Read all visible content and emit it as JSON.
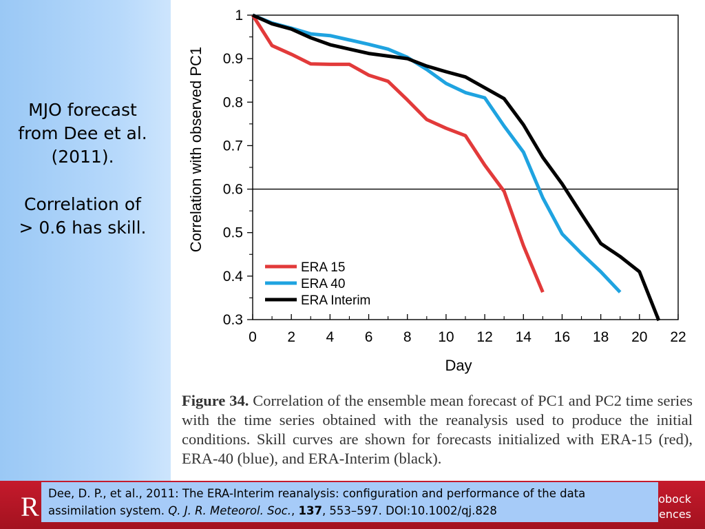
{
  "sidebar": {
    "line1": "MJO forecast",
    "line2": "from Dee et al.",
    "line3": "(2011).",
    "line4": "Correlation of",
    "line5": "> 0.6 has skill."
  },
  "chart_data": {
    "type": "line",
    "title": "",
    "xlabel": "Day",
    "ylabel": "Correlation with observed PC1",
    "xlim": [
      0,
      22
    ],
    "ylim": [
      0.3,
      1.0
    ],
    "xticks": [
      0,
      2,
      4,
      6,
      8,
      10,
      12,
      14,
      16,
      18,
      20,
      22
    ],
    "yticks": [
      0.3,
      0.4,
      0.5,
      0.6,
      0.7,
      0.8,
      0.9,
      1
    ],
    "xtick_labels": [
      "0",
      "2",
      "4",
      "6",
      "8",
      "10",
      "12",
      "14",
      "16",
      "18",
      "20",
      "22"
    ],
    "ytick_labels": [
      "0.3",
      "0.4",
      "0.5",
      "0.6",
      "0.7",
      "0.8",
      "0.9",
      "1"
    ],
    "reference_line_y": 0.6,
    "grid": false,
    "legend_position": "bottom-left",
    "series": [
      {
        "name": "ERA 15",
        "color": "#e23a3a",
        "x": [
          0,
          1,
          2,
          3,
          4,
          5,
          6,
          7,
          8,
          9,
          10,
          11,
          12,
          13,
          14,
          15
        ],
        "y": [
          1.0,
          0.93,
          0.91,
          0.888,
          0.887,
          0.887,
          0.862,
          0.848,
          0.805,
          0.76,
          0.74,
          0.723,
          0.655,
          0.595,
          0.47,
          0.363
        ]
      },
      {
        "name": "ERA 40",
        "color": "#1fa3e0",
        "x": [
          0,
          1,
          2,
          3,
          4,
          5,
          6,
          7,
          8,
          9,
          10,
          11,
          12,
          13,
          14,
          15,
          16,
          17,
          18,
          19
        ],
        "y": [
          1.0,
          0.982,
          0.97,
          0.957,
          0.953,
          0.943,
          0.933,
          0.922,
          0.903,
          0.875,
          0.843,
          0.822,
          0.81,
          0.745,
          0.685,
          0.58,
          0.497,
          0.452,
          0.41,
          0.363
        ]
      },
      {
        "name": "ERA Interim",
        "color": "#000000",
        "x": [
          0,
          1,
          2,
          3,
          4,
          5,
          6,
          7,
          8,
          9,
          10,
          11,
          12,
          13,
          14,
          15,
          16,
          17,
          18,
          19,
          20,
          21
        ],
        "y": [
          1.0,
          0.98,
          0.968,
          0.948,
          0.932,
          0.922,
          0.912,
          0.906,
          0.9,
          0.883,
          0.87,
          0.858,
          0.833,
          0.808,
          0.748,
          0.673,
          0.612,
          0.543,
          0.475,
          0.445,
          0.41,
          0.298
        ]
      }
    ]
  },
  "caption": {
    "label": "Figure 34.",
    "text": "Correlation of the ensemble mean forecast of PC1 and PC2 time series with the time series obtained with the reanalysis used to produce the initial conditions. Skill curves are shown for forecasts initialized with ERA-15 (red), ERA-40 (blue), and ERA-Interim (black)."
  },
  "reference": {
    "part1": "Dee, D. P., et al., 2011: The ERA-Interim reanalysis: configuration and performance of the data assimilation system.",
    "journal": "Q. J. R. Meteorol. Soc.",
    "sep1": ",",
    "volume": "137",
    "pages": ", 553–597. DOI:10.1002/qj.828"
  },
  "footer": {
    "logo_letter": "R",
    "right_line1": "obock",
    "right_line2": "iences"
  }
}
